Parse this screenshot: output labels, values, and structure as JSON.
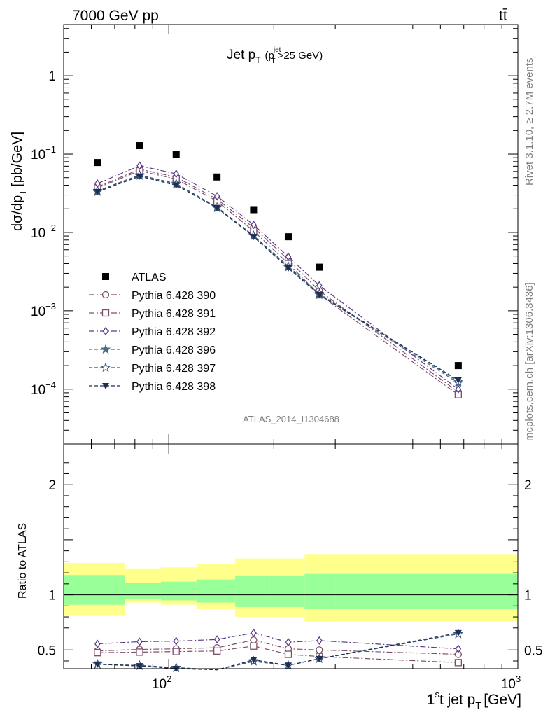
{
  "header": {
    "energy_label": "7000 GeV pp",
    "process_label": "tt̄",
    "rivet_label": "Rivet 3.1.10, ≥ 2.7M events",
    "mcplots_label": "mcplots.cern.ch [arXiv:1306.3436]",
    "analysis_id": "ATLAS_2014_I1304688"
  },
  "chart_data": [
    {
      "type": "scatter",
      "panel": "main",
      "title_main": "Jet p",
      "title_sub": "T",
      "title_cut_p": "(p",
      "title_cut_sup": "jet",
      "title_cut_sub": "T",
      "title_cut_rest": ">25 GeV)",
      "ylabel_main": "dσ/dp",
      "ylabel_sub": "T",
      "ylabel_units": "[pb/GeV]",
      "yscale": "log",
      "xscale": "log",
      "xlim": [
        50,
        1000
      ],
      "ylim": [
        2e-05,
        4.5
      ],
      "x": [
        62.5,
        82.5,
        105,
        137.5,
        175,
        220,
        270,
        675
      ],
      "ytick_labels": [
        {
          "m": "1",
          "e": "",
          "v": 1
        },
        {
          "m": "10",
          "e": "−1",
          "v": 0.1
        },
        {
          "m": "10",
          "e": "−2",
          "v": 0.01
        },
        {
          "m": "10",
          "e": "−3",
          "v": 0.001
        },
        {
          "m": "10",
          "e": "−4",
          "v": 0.0001
        }
      ],
      "series": [
        {
          "name": "ATLAS",
          "marker": "square",
          "color": "#000000",
          "dash": "none",
          "values": [
            0.078,
            0.128,
            0.1,
            0.051,
            0.0195,
            0.0088,
            0.0036,
            0.0002
          ]
        },
        {
          "name": "Pythia 6.428 390",
          "marker": "circle",
          "color": "#7e4f6a",
          "dash": "8,3,2,3",
          "values": [
            0.038,
            0.064,
            0.051,
            0.0265,
            0.0115,
            0.0045,
            0.0018,
            9.2e-05
          ]
        },
        {
          "name": "Pythia 6.428 391",
          "marker": "square-open",
          "color": "#7e4f6a",
          "dash": "8,3,2,3",
          "values": [
            0.037,
            0.061,
            0.048,
            0.025,
            0.0104,
            0.004,
            0.0016,
            8.5e-05
          ]
        },
        {
          "name": "Pythia 6.428 392",
          "marker": "diamond",
          "color": "#5b3a8c",
          "dash": "8,3,2,3",
          "values": [
            0.042,
            0.071,
            0.056,
            0.029,
            0.0125,
            0.0049,
            0.0021,
            0.0001
          ]
        },
        {
          "name": "Pythia 6.428 396",
          "marker": "star-filled",
          "color": "#4a6e7e",
          "dash": "5,3",
          "values": [
            0.033,
            0.053,
            0.041,
            0.0205,
            0.009,
            0.0036,
            0.0016,
            0.00012
          ]
        },
        {
          "name": "Pythia 6.428 397",
          "marker": "star-open",
          "color": "#36557a",
          "dash": "5,3",
          "values": [
            0.034,
            0.054,
            0.042,
            0.021,
            0.0091,
            0.0037,
            0.00165,
            0.000125
          ]
        },
        {
          "name": "Pythia 6.428 398",
          "marker": "triangle-down",
          "color": "#1f2e55",
          "dash": "5,3",
          "values": [
            0.033,
            0.052,
            0.04,
            0.0205,
            0.0088,
            0.0035,
            0.0016,
            0.00013
          ]
        }
      ]
    },
    {
      "type": "scatter",
      "panel": "ratio",
      "ylabel": "Ratio to ATLAS",
      "xlabel_prefix": "1",
      "xlabel_sup": "s",
      "xlabel_main": "t jet p",
      "xlabel_sub": "T",
      "xlabel_units": "[GeV]",
      "xscale": "log",
      "xlim": [
        50,
        1000
      ],
      "ylim": [
        0.33,
        2.37
      ],
      "ytick_labels": [
        "0.5",
        "1",
        "2"
      ],
      "xtick_labels": [
        {
          "m": "10",
          "e": "2",
          "v": 100
        },
        {
          "m": "10",
          "e": "3",
          "v": 1000
        }
      ],
      "bins": [
        {
          "lo": 50,
          "hi": 75,
          "yellow": [
            0.81,
            1.29
          ],
          "green": [
            0.91,
            1.18
          ]
        },
        {
          "lo": 75,
          "hi": 95,
          "yellow": [
            0.93,
            1.24
          ],
          "green": [
            0.96,
            1.11
          ]
        },
        {
          "lo": 95,
          "hi": 120,
          "yellow": [
            0.91,
            1.25
          ],
          "green": [
            0.95,
            1.12
          ]
        },
        {
          "lo": 120,
          "hi": 155,
          "yellow": [
            0.87,
            1.28
          ],
          "green": [
            0.93,
            1.14
          ]
        },
        {
          "lo": 155,
          "hi": 195,
          "yellow": [
            0.8,
            1.33
          ],
          "green": [
            0.89,
            1.17
          ]
        },
        {
          "lo": 195,
          "hi": 245,
          "yellow": [
            0.8,
            1.33
          ],
          "green": [
            0.89,
            1.17
          ]
        },
        {
          "lo": 245,
          "hi": 300,
          "yellow": [
            0.75,
            1.37
          ],
          "green": [
            0.87,
            1.19
          ]
        },
        {
          "lo": 300,
          "hi": 1000,
          "yellow": [
            0.76,
            1.37
          ],
          "green": [
            0.87,
            1.19
          ]
        }
      ],
      "series": [
        {
          "name": "Pythia 6.428 390",
          "values": [
            0.49,
            0.505,
            0.51,
            0.52,
            0.59,
            0.51,
            0.5,
            0.46
          ]
        },
        {
          "name": "Pythia 6.428 391",
          "values": [
            0.475,
            0.48,
            0.485,
            0.49,
            0.535,
            0.46,
            0.44,
            0.385
          ]
        },
        {
          "name": "Pythia 6.428 392",
          "values": [
            0.555,
            0.575,
            0.58,
            0.595,
            0.655,
            0.57,
            0.585,
            0.51
          ]
        },
        {
          "name": "Pythia 6.428 396",
          "values": [
            0.37,
            0.355,
            0.335,
            0.32,
            0.395,
            0.36,
            0.42,
            0.645
          ]
        },
        {
          "name": "Pythia 6.428 397",
          "values": [
            0.37,
            0.36,
            0.34,
            0.32,
            0.4,
            0.36,
            0.42,
            0.645
          ]
        },
        {
          "name": "Pythia 6.428 398",
          "values": [
            0.37,
            0.355,
            0.33,
            0.32,
            0.41,
            0.36,
            0.42,
            0.655
          ]
        }
      ]
    }
  ]
}
